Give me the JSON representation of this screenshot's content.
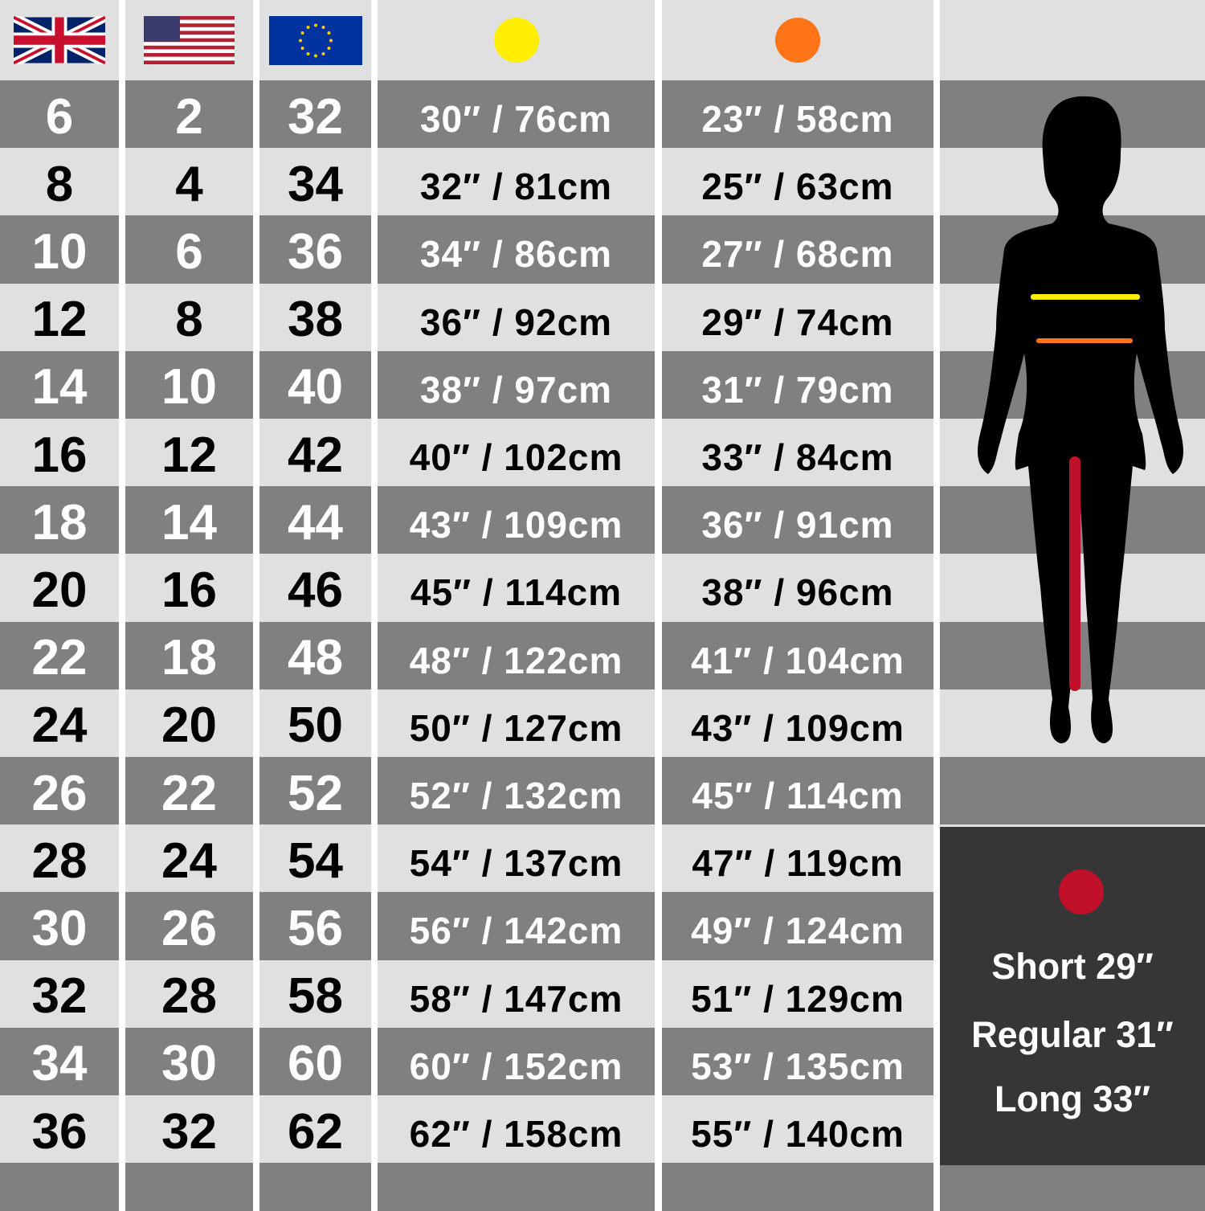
{
  "colors": {
    "dark_row": "#808080",
    "light_row": "#e0e0e0",
    "bust": "#ffee00",
    "waist": "#ff7417",
    "inseam": "#c0102a",
    "inseam_panel": "#363636"
  },
  "header": {
    "uk_flag": "uk-flag-icon",
    "us_flag": "us-flag-icon",
    "eu_flag": "eu-flag-icon",
    "bust_marker": "yellow-dot-icon",
    "waist_marker": "orange-dot-icon"
  },
  "sizes": [
    {
      "uk": "6",
      "us": "2",
      "eu": "32",
      "bust": "30″ / 76cm",
      "waist": "23″ / 58cm"
    },
    {
      "uk": "8",
      "us": "4",
      "eu": "34",
      "bust": "32″ / 81cm",
      "waist": "25″ / 63cm"
    },
    {
      "uk": "10",
      "us": "6",
      "eu": "36",
      "bust": "34″ / 86cm",
      "waist": "27″ / 68cm"
    },
    {
      "uk": "12",
      "us": "8",
      "eu": "38",
      "bust": "36″ / 92cm",
      "waist": "29″ / 74cm"
    },
    {
      "uk": "14",
      "us": "10",
      "eu": "40",
      "bust": "38″ / 97cm",
      "waist": "31″ / 79cm"
    },
    {
      "uk": "16",
      "us": "12",
      "eu": "42",
      "bust": "40″ / 102cm",
      "waist": "33″ / 84cm"
    },
    {
      "uk": "18",
      "us": "14",
      "eu": "44",
      "bust": "43″ / 109cm",
      "waist": "36″ / 91cm"
    },
    {
      "uk": "20",
      "us": "16",
      "eu": "46",
      "bust": "45″ / 114cm",
      "waist": "38″ / 96cm"
    },
    {
      "uk": "22",
      "us": "18",
      "eu": "48",
      "bust": "48″ / 122cm",
      "waist": "41″ / 104cm"
    },
    {
      "uk": "24",
      "us": "20",
      "eu": "50",
      "bust": "50″ / 127cm",
      "waist": "43″ / 109cm"
    },
    {
      "uk": "26",
      "us": "22",
      "eu": "52",
      "bust": "52″ / 132cm",
      "waist": "45″ / 114cm"
    },
    {
      "uk": "28",
      "us": "24",
      "eu": "54",
      "bust": "54″ / 137cm",
      "waist": "47″ / 119cm"
    },
    {
      "uk": "30",
      "us": "26",
      "eu": "56",
      "bust": "56″ / 142cm",
      "waist": "49″ / 124cm"
    },
    {
      "uk": "32",
      "us": "28",
      "eu": "58",
      "bust": "58″ / 147cm",
      "waist": "51″ / 129cm"
    },
    {
      "uk": "34",
      "us": "30",
      "eu": "60",
      "bust": "60″ / 152cm",
      "waist": "53″ / 135cm"
    },
    {
      "uk": "36",
      "us": "32",
      "eu": "62",
      "bust": "62″ / 158cm",
      "waist": "55″ / 140cm"
    }
  ],
  "inseam": {
    "marker": "red-dot-icon",
    "short": "Short 29″",
    "regular": "Regular 31″",
    "long": "Long 33″"
  },
  "figure": "female-silhouette-icon"
}
